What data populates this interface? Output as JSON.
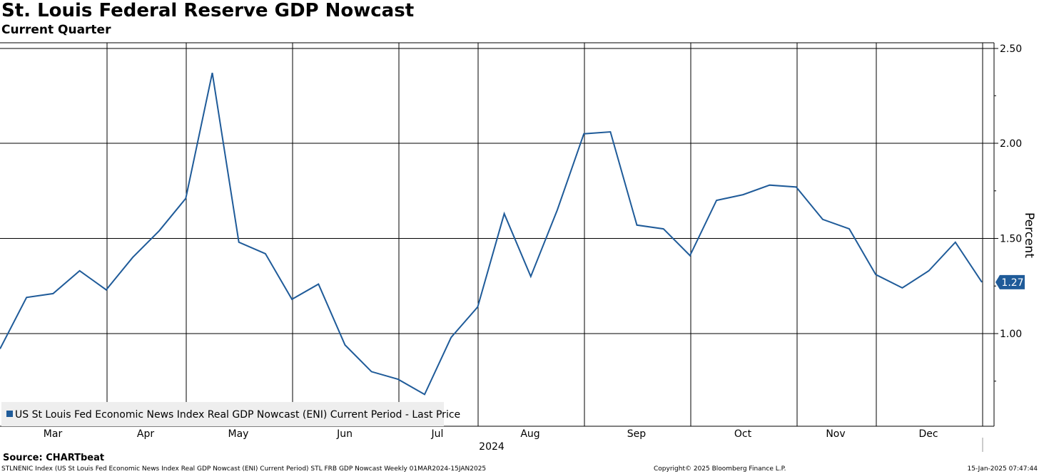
{
  "title": "St. Louis Federal Reserve GDP Nowcast",
  "subtitle": "Current Quarter",
  "source": "Source: CHARTbeat",
  "footer": {
    "left": "STLNENIC Index (US St Louis Fed Economic News Index Real GDP Nowcast (ENI) Current Period) STL FRB GDP Nowcast  Weekly 01MAR2024-15JAN2025",
    "center": "Copyright© 2025 Bloomberg Finance L.P.",
    "right": "15-Jan-2025 07:47:44"
  },
  "colors": {
    "line": "#1f5b99",
    "grid": "#000000",
    "legend_bg": "#eeeeee",
    "last_badge": "#1f5b99"
  },
  "chart_data": {
    "type": "line",
    "ylabel": "Percent",
    "xlabel": "2024",
    "ylim": [
      0.5,
      2.52
    ],
    "yticks": [
      1.0,
      1.5,
      2.0,
      2.5
    ],
    "ytick_labels": [
      "1.00",
      "1.50",
      "2.00",
      "2.50"
    ],
    "month_labels": [
      "Mar",
      "Apr",
      "May",
      "Jun",
      "Jul",
      "Aug",
      "Sep",
      "Oct",
      "Nov",
      "Dec"
    ],
    "year_label": "2024",
    "legend": "US St Louis Fed Economic News Index Real GDP Nowcast (ENI) Current Period - Last Price",
    "legend_position": "bottom-left",
    "last_value_label": "1.27",
    "series": [
      {
        "name": "US St Louis Fed Economic News Index Real GDP Nowcast (ENI) Current Period - Last Price",
        "values": [
          0.92,
          1.19,
          1.21,
          1.33,
          1.23,
          1.4,
          1.54,
          1.71,
          2.37,
          1.48,
          1.42,
          1.18,
          1.26,
          0.94,
          0.8,
          0.76,
          0.68,
          0.98,
          1.14,
          1.63,
          1.3,
          1.65,
          2.05,
          2.06,
          1.57,
          1.55,
          1.41,
          1.7,
          1.73,
          1.78,
          1.77,
          1.6,
          1.55,
          1.31,
          1.24,
          1.33,
          1.48,
          1.27
        ]
      }
    ]
  }
}
